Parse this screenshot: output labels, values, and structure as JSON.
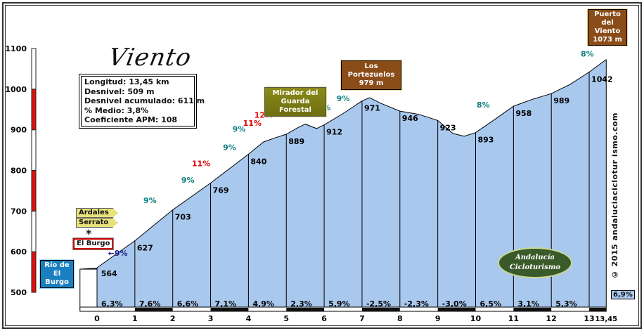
{
  "header": {
    "title": "Viento"
  },
  "info": {
    "lines": [
      "Longitud: 13,45 km",
      "Desnivel: 509 m",
      "Desnivel acumulado: 611 m",
      "% Medio: 3,8%",
      "Coeficiente APM: 108"
    ]
  },
  "signs": {
    "start": [
      "Río de",
      "El Burgo"
    ],
    "town": "El Burgo",
    "dir1": "Ardales",
    "dir2": "Serrato",
    "mirador": [
      "Mirador del",
      "Guarda Forestal"
    ],
    "portezuelos": [
      "Los Portezuelos",
      "979 m"
    ],
    "puerto": [
      "Puerto del",
      "Viento",
      "1073 m"
    ]
  },
  "copyright": "© 2015 andaluciaciclotur ismo.com",
  "logo": [
    "Andalucía",
    "Cicloturismo"
  ],
  "total_slope": "6,9%",
  "colors": {
    "fill": "#a9c8ee",
    "scale_red": "#e01010",
    "label_teal": "#108080",
    "label_red": "#e00000",
    "label_navy": "#1a1a8a"
  },
  "chart_data": {
    "type": "area",
    "title": "Viento",
    "xlabel": "km",
    "ylabel": "m",
    "xlim": [
      0,
      13.45
    ],
    "ylim": [
      500,
      1100
    ],
    "y_ticks": [
      "500",
      "600",
      "700",
      "800",
      "900",
      "1000",
      "1100"
    ],
    "x_ticks": [
      "0",
      "1",
      "2",
      "3",
      "4",
      "5",
      "6",
      "7",
      "8",
      "9",
      "10",
      "11",
      "12",
      "13",
      "13,45"
    ],
    "profile": [
      [
        -0.45,
        557
      ],
      [
        0,
        560
      ],
      [
        0.05,
        564
      ],
      [
        1,
        627
      ],
      [
        2,
        703
      ],
      [
        3,
        769
      ],
      [
        4,
        840
      ],
      [
        4.4,
        870
      ],
      [
        4.7,
        880
      ],
      [
        5,
        889
      ],
      [
        5.3,
        905
      ],
      [
        5.5,
        914
      ],
      [
        5.8,
        903
      ],
      [
        6,
        912
      ],
      [
        6.5,
        940
      ],
      [
        7,
        971
      ],
      [
        7.2,
        979
      ],
      [
        7.5,
        965
      ],
      [
        8,
        946
      ],
      [
        8.5,
        938
      ],
      [
        9,
        923
      ],
      [
        9.4,
        891
      ],
      [
        9.7,
        884
      ],
      [
        10,
        893
      ],
      [
        10.5,
        925
      ],
      [
        11,
        958
      ],
      [
        11.5,
        975
      ],
      [
        12,
        989
      ],
      [
        12.5,
        1012
      ],
      [
        13,
        1042
      ],
      [
        13.45,
        1073
      ]
    ],
    "km_elevations": [
      {
        "km": 0.05,
        "label": "564"
      },
      {
        "km": 1,
        "label": "627"
      },
      {
        "km": 2,
        "label": "703"
      },
      {
        "km": 3,
        "label": "769"
      },
      {
        "km": 4,
        "label": "840"
      },
      {
        "km": 5,
        "label": "889"
      },
      {
        "km": 6,
        "label": "912"
      },
      {
        "km": 7,
        "label": "971"
      },
      {
        "km": 8,
        "label": "946"
      },
      {
        "km": 9,
        "label": "923"
      },
      {
        "km": 10,
        "label": "893"
      },
      {
        "km": 11,
        "label": "958"
      },
      {
        "km": 12,
        "label": "989"
      },
      {
        "km": 13,
        "label": "1042"
      }
    ],
    "segment_slopes": [
      "6,3%",
      "7,6%",
      "6,6%",
      "7,1%",
      "4,9%",
      "2,3%",
      "5,9%",
      "-2,5%",
      "-2,3%",
      "-3,0%",
      "6,5%",
      "3,1%",
      "5,3%"
    ],
    "ramps": [
      {
        "km": 0.55,
        "elev": 590,
        "label": "←9%",
        "color": "navy"
      },
      {
        "km": 1.4,
        "elev": 720,
        "label": "9%",
        "color": "teal"
      },
      {
        "km": 2.4,
        "elev": 770,
        "label": "9%",
        "color": "teal"
      },
      {
        "km": 2.75,
        "elev": 810,
        "label": "11%",
        "color": "red"
      },
      {
        "km": 3.5,
        "elev": 850,
        "label": "9%",
        "color": "teal"
      },
      {
        "km": 3.75,
        "elev": 895,
        "label": "9%",
        "color": "teal"
      },
      {
        "km": 4.1,
        "elev": 910,
        "label": "11%",
        "color": "red"
      },
      {
        "km": 4.4,
        "elev": 930,
        "label": "12%",
        "color": "red"
      },
      {
        "km": 6,
        "elev": 948,
        "label": "9%",
        "color": "teal"
      },
      {
        "km": 6.5,
        "elev": 970,
        "label": "9%",
        "color": "teal"
      },
      {
        "km": 10.2,
        "elev": 955,
        "label": "8%",
        "color": "teal"
      },
      {
        "km": 12.95,
        "elev": 1080,
        "label": "8%",
        "color": "teal"
      },
      {
        "km": 13.25,
        "elev": 1105,
        "label": "8%",
        "color": "teal"
      }
    ]
  }
}
